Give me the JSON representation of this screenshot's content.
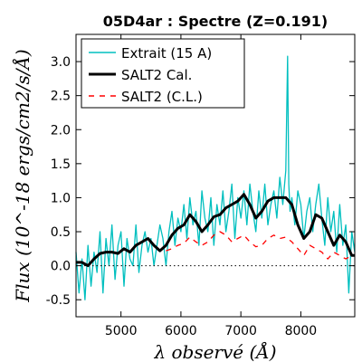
{
  "chart_data": {
    "type": "line",
    "title": "05D4ar : Spectre (Z=0.191)",
    "xlabel": "λ observé (Å)",
    "ylabel": "Flux (10^-18 ergs/cm2/s/Å)",
    "xlim": [
      4250,
      8900
    ],
    "ylim": [
      -0.75,
      3.4
    ],
    "xticks": [
      5000,
      6000,
      7000,
      8000
    ],
    "yticks": [
      -0.5,
      0.0,
      0.5,
      1.0,
      1.5,
      2.0,
      2.5,
      3.0
    ],
    "xtick_labels": [
      "5000",
      "6000",
      "7000",
      "8000"
    ],
    "ytick_labels": [
      "-0.5",
      "0.0",
      "0.5",
      "1.0",
      "1.5",
      "2.0",
      "2.5",
      "3.0"
    ],
    "zero_line": true,
    "legend_position": "top-left",
    "series": [
      {
        "name": "Extrait (15 A)",
        "color": "#00bfbf",
        "style": "solid",
        "x": [
          4250,
          4300,
          4350,
          4400,
          4450,
          4500,
          4550,
          4600,
          4650,
          4700,
          4750,
          4800,
          4850,
          4900,
          4950,
          5000,
          5050,
          5100,
          5150,
          5200,
          5250,
          5300,
          5350,
          5400,
          5450,
          5500,
          5550,
          5600,
          5650,
          5700,
          5750,
          5800,
          5850,
          5900,
          5950,
          6000,
          6050,
          6100,
          6150,
          6200,
          6250,
          6300,
          6350,
          6400,
          6450,
          6500,
          6550,
          6600,
          6650,
          6700,
          6750,
          6800,
          6850,
          6900,
          6950,
          7000,
          7050,
          7100,
          7150,
          7200,
          7250,
          7300,
          7350,
          7400,
          7450,
          7500,
          7550,
          7600,
          7650,
          7700,
          7750,
          7780,
          7800,
          7820,
          7850,
          7900,
          7950,
          8000,
          8050,
          8100,
          8150,
          8200,
          8250,
          8300,
          8350,
          8400,
          8450,
          8500,
          8550,
          8600,
          8650,
          8700,
          8750,
          8800,
          8850,
          8900
        ],
        "y": [
          0.2,
          -0.4,
          0.1,
          -0.5,
          0.3,
          -0.3,
          0.2,
          -0.1,
          0.5,
          -0.4,
          0.4,
          0.0,
          0.6,
          -0.2,
          0.3,
          0.5,
          -0.3,
          0.4,
          0.1,
          0.0,
          0.6,
          -0.1,
          0.3,
          0.5,
          0.2,
          0.4,
          0.0,
          0.3,
          0.6,
          0.4,
          0.0,
          0.5,
          0.8,
          0.3,
          0.7,
          0.5,
          0.9,
          0.4,
          1.0,
          0.6,
          0.8,
          0.3,
          1.1,
          0.7,
          0.5,
          1.0,
          0.3,
          0.9,
          0.6,
          1.1,
          0.5,
          0.8,
          1.2,
          0.4,
          1.0,
          0.7,
          1.1,
          0.6,
          1.2,
          0.8,
          0.5,
          1.1,
          0.7,
          1.2,
          0.6,
          0.9,
          1.1,
          0.7,
          1.3,
          0.9,
          1.4,
          3.08,
          1.2,
          0.8,
          1.0,
          0.6,
          1.1,
          0.9,
          0.4,
          0.8,
          1.0,
          0.5,
          0.9,
          1.2,
          0.7,
          0.3,
          1.0,
          0.5,
          0.8,
          0.2,
          0.9,
          0.3,
          0.6,
          -0.4,
          0.5,
          0.2
        ]
      },
      {
        "name": "SALT2 Cal.",
        "color": "#000000",
        "style": "solid-thick",
        "x": [
          4250,
          4350,
          4450,
          4550,
          4650,
          4750,
          4850,
          4950,
          5050,
          5150,
          5250,
          5350,
          5450,
          5550,
          5650,
          5750,
          5850,
          5950,
          6050,
          6150,
          6250,
          6350,
          6450,
          6550,
          6650,
          6750,
          6850,
          6950,
          7050,
          7150,
          7250,
          7350,
          7450,
          7550,
          7650,
          7750,
          7850,
          7950,
          8050,
          8150,
          8250,
          8350,
          8450,
          8550,
          8650,
          8750,
          8850,
          8900
        ],
        "y": [
          0.05,
          0.05,
          0.0,
          0.1,
          0.18,
          0.2,
          0.2,
          0.18,
          0.25,
          0.2,
          0.3,
          0.35,
          0.4,
          0.3,
          0.22,
          0.3,
          0.45,
          0.55,
          0.6,
          0.75,
          0.65,
          0.5,
          0.6,
          0.72,
          0.75,
          0.85,
          0.9,
          0.95,
          1.05,
          0.9,
          0.7,
          0.8,
          0.95,
          1.0,
          1.0,
          1.0,
          0.9,
          0.6,
          0.4,
          0.5,
          0.75,
          0.7,
          0.5,
          0.3,
          0.45,
          0.35,
          0.15,
          0.15
        ]
      },
      {
        "name": "SALT2 (C.L.)",
        "color": "#ff0000",
        "style": "dashed",
        "x": [
          5750,
          5850,
          5950,
          6050,
          6150,
          6250,
          6350,
          6450,
          6550,
          6650,
          6750,
          6850,
          6950,
          7050,
          7150,
          7250,
          7350,
          7450,
          7550,
          7650,
          7750,
          7850,
          7950,
          8050,
          8150,
          8250,
          8350,
          8450,
          8550,
          8650,
          8750,
          8850
        ],
        "y": [
          0.22,
          0.25,
          0.3,
          0.33,
          0.42,
          0.35,
          0.3,
          0.35,
          0.45,
          0.5,
          0.45,
          0.35,
          0.4,
          0.45,
          0.35,
          0.28,
          0.3,
          0.4,
          0.45,
          0.4,
          0.42,
          0.35,
          0.25,
          0.15,
          0.3,
          0.25,
          0.2,
          0.1,
          0.2,
          0.15,
          0.1,
          0.15
        ]
      }
    ]
  }
}
